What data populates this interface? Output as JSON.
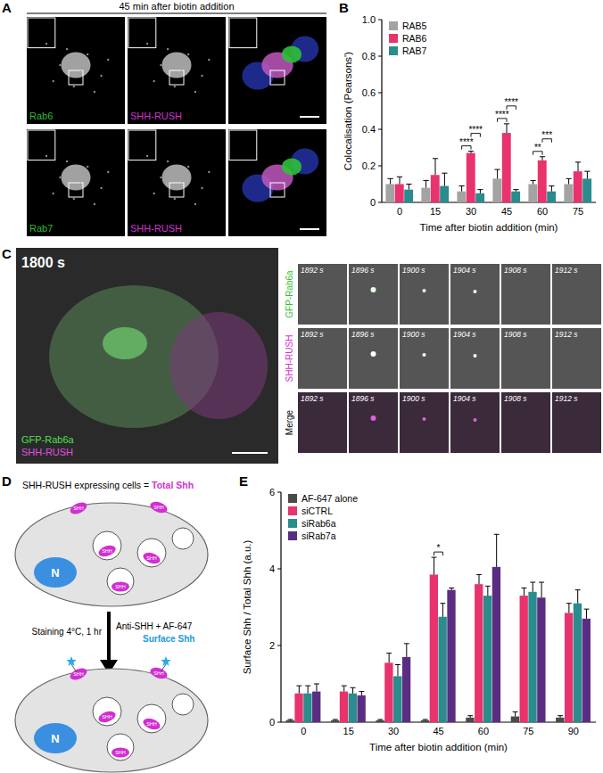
{
  "chart_data": [
    {
      "type": "bar",
      "y_label": "Colocalisation (Pearsons')",
      "x_label": "Time after biotin addition (min)",
      "categories": [
        0,
        15,
        30,
        45,
        60,
        75
      ],
      "series": [
        {
          "name": "RAB5",
          "color": "#a3a3a3",
          "values": [
            0.1,
            0.08,
            0.06,
            0.13,
            0.1,
            0.1
          ],
          "errors": [
            0.03,
            0.04,
            0.03,
            0.05,
            0.02,
            0.03
          ]
        },
        {
          "name": "RAB6",
          "color": "#e8336d",
          "values": [
            0.1,
            0.15,
            0.27,
            0.38,
            0.23,
            0.17
          ],
          "errors": [
            0.04,
            0.09,
            0.01,
            0.05,
            0.02,
            0.05
          ]
        },
        {
          "name": "RAB7",
          "color": "#2a8c8c",
          "values": [
            0.07,
            0.09,
            0.05,
            0.06,
            0.06,
            0.13
          ],
          "errors": [
            0.03,
            0.07,
            0.02,
            0.01,
            0.03,
            0.04
          ]
        }
      ],
      "ylim": [
        0,
        1
      ],
      "yticks": [
        0,
        0.2,
        0.4,
        0.6,
        0.8,
        {
          "value": 1,
          "label": "1.0"
        }
      ],
      "legend": "upper left",
      "annotations": [
        {
          "at": 30,
          "between": [
            "RAB5",
            "RAB6"
          ],
          "label": "****"
        },
        {
          "at": 30,
          "between": [
            "RAB6",
            "RAB7"
          ],
          "label": "****"
        },
        {
          "at": 45,
          "between": [
            "RAB5",
            "RAB6"
          ],
          "label": "****"
        },
        {
          "at": 45,
          "between": [
            "RAB6",
            "RAB7"
          ],
          "label": "****"
        },
        {
          "at": 60,
          "between": [
            "RAB5",
            "RAB6"
          ],
          "label": "**"
        },
        {
          "at": 60,
          "between": [
            "RAB6",
            "RAB7"
          ],
          "label": "***"
        }
      ]
    },
    {
      "type": "bar",
      "y_label": "Surface Shh / Total Shh (a.u.)",
      "x_label": "Time after biotin addition (min)",
      "categories": [
        0,
        15,
        30,
        45,
        60,
        75,
        90
      ],
      "series": [
        {
          "name": "AF-647 alone",
          "color": "#4a4a4a",
          "values": [
            0.05,
            0.05,
            0.05,
            0.05,
            0.12,
            0.15,
            0.12
          ],
          "errors": [
            0.02,
            0.02,
            0.02,
            0.02,
            0.05,
            0.12,
            0.05
          ]
        },
        {
          "name": "siCTRL",
          "color": "#e8336d",
          "values": [
            0.75,
            0.8,
            1.55,
            3.85,
            3.6,
            3.3,
            2.85
          ],
          "errors": [
            0.2,
            0.15,
            0.25,
            0.45,
            0.25,
            0.2,
            0.25
          ]
        },
        {
          "name": "siRab6a",
          "color": "#2a8c8c",
          "values": [
            0.75,
            0.75,
            1.2,
            2.75,
            3.3,
            3.4,
            3.1
          ],
          "errors": [
            0.2,
            0.15,
            0.3,
            0.35,
            0.25,
            0.25,
            0.35
          ]
        },
        {
          "name": "siRab7a",
          "color": "#5a2d82",
          "values": [
            0.8,
            0.7,
            1.7,
            3.45,
            4.05,
            3.25,
            2.7
          ],
          "errors": [
            0.2,
            0.1,
            0.35,
            0.05,
            0.85,
            0.4,
            0.25
          ]
        }
      ],
      "ylim": [
        0,
        6
      ],
      "yticks": [
        0,
        2,
        4,
        6
      ],
      "legend": "upper left",
      "annotations": [
        {
          "at": 45,
          "between": [
            "siCTRL",
            "siRab6a"
          ],
          "label": "*"
        }
      ]
    }
  ],
  "panel_letters": {
    "a": "A",
    "b": "B",
    "c": "C",
    "d": "D",
    "e": "E"
  },
  "panel_a": {
    "title": "45 min after biotin addition",
    "rows": [
      {
        "marker": "Rab6",
        "cargo": "SHH-RUSH"
      },
      {
        "marker": "Rab7",
        "cargo": "SHH-RUSH"
      }
    ]
  },
  "panel_c": {
    "time": "1800 s",
    "channels": [
      "GFP-Rab6a",
      "SHH-RUSH"
    ],
    "rows": [
      "GFP-Rab6a",
      "SHH-RUSH",
      "Merge"
    ],
    "frames": [
      "1892 s",
      "1896 s",
      "1900 s",
      "1904 s",
      "1908 s",
      "1912 s"
    ]
  },
  "panel_d": {
    "caption": "SHH-RUSH expressing cells = ",
    "total": "Total Shh",
    "nucleus": "N",
    "protein": "SHH",
    "step_left": "Staining 4°C, 1 hr",
    "step_right": "Anti-SHH + AF-647",
    "result": "Surface Shh"
  }
}
